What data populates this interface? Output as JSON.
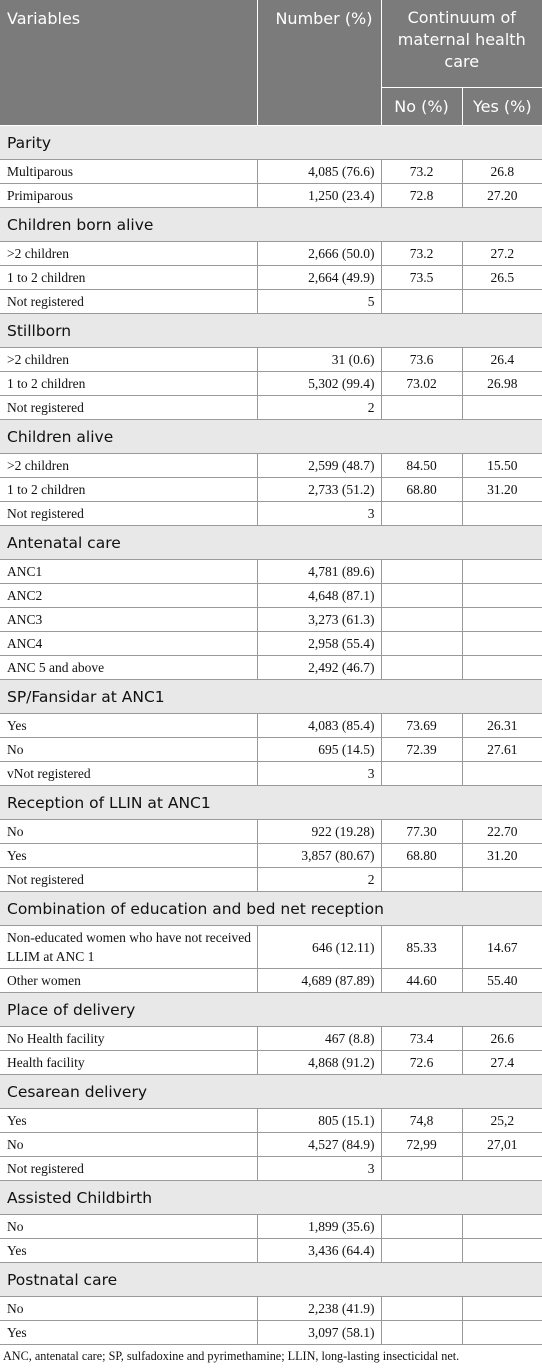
{
  "header": {
    "variables": "Variables",
    "number": "Number (%)",
    "continuum": "Continuum of maternal health care",
    "no": "No (%)",
    "yes": "Yes (%)"
  },
  "sections": [
    {
      "title": "Parity",
      "rows": [
        {
          "label": "Multiparous",
          "number": "4,085 (76.6)",
          "no": "73.2",
          "yes": "26.8"
        },
        {
          "label": "Primiparous",
          "number": "1,250 (23.4)",
          "no": "72.8",
          "yes": "27.20"
        }
      ]
    },
    {
      "title": "Children born alive",
      "rows": [
        {
          "label": ">2 children",
          "number": "2,666 (50.0)",
          "no": "73.2",
          "yes": "27.2"
        },
        {
          "label": "1 to 2 children",
          "number": "2,664 (49.9)",
          "no": "73.5",
          "yes": "26.5"
        },
        {
          "label": "Not registered",
          "number": "5",
          "no": "",
          "yes": ""
        }
      ]
    },
    {
      "title": "Stillborn",
      "rows": [
        {
          "label": ">2 children",
          "number": "31 (0.6)",
          "no": "73.6",
          "yes": "26.4"
        },
        {
          "label": "1 to 2 children",
          "number": "5,302 (99.4)",
          "no": "73.02",
          "yes": "26.98"
        },
        {
          "label": "Not registered",
          "number": "2",
          "no": "",
          "yes": ""
        }
      ]
    },
    {
      "title": "Children alive",
      "rows": [
        {
          "label": ">2 children",
          "number": "2,599 (48.7)",
          "no": "84.50",
          "yes": "15.50"
        },
        {
          "label": "1 to 2 children",
          "number": "2,733 (51.2)",
          "no": "68.80",
          "yes": "31.20"
        },
        {
          "label": "Not registered",
          "number": "3",
          "no": "",
          "yes": ""
        }
      ]
    },
    {
      "title": "Antenatal care",
      "rows": [
        {
          "label": "ANC1",
          "number": "4,781 (89.6)",
          "no": "",
          "yes": ""
        },
        {
          "label": "ANC2",
          "number": "4,648 (87.1)",
          "no": "",
          "yes": ""
        },
        {
          "label": "ANC3",
          "number": "3,273 (61.3)",
          "no": "",
          "yes": ""
        },
        {
          "label": "ANC4",
          "number": "2,958 (55.4)",
          "no": "",
          "yes": ""
        },
        {
          "label": "ANC 5 and above",
          "number": "2,492 (46.7)",
          "no": "",
          "yes": ""
        }
      ]
    },
    {
      "title": "SP/Fansidar at ANC1",
      "rows": [
        {
          "label": "Yes",
          "number": "4,083 (85.4)",
          "no": "73.69",
          "yes": "26.31"
        },
        {
          "label": "No",
          "number": "695 (14.5)",
          "no": "72.39",
          "yes": "27.61"
        },
        {
          "label": "vNot registered",
          "number": "3",
          "no": "",
          "yes": ""
        }
      ]
    },
    {
      "title": "Reception of LLIN at ANC1",
      "rows": [
        {
          "label": "No",
          "number": "922 (19.28)",
          "no": "77.30",
          "yes": "22.70"
        },
        {
          "label": "Yes",
          "number": "3,857 (80.67)",
          "no": "68.80",
          "yes": "31.20"
        },
        {
          "label": "Not registered",
          "number": "2",
          "no": "",
          "yes": ""
        }
      ]
    },
    {
      "title": "Combination of education and bed net reception",
      "rows": [
        {
          "label": "Non-educated women who have not received LLIM at ANC 1",
          "number": "646 (12.11)",
          "no": "85.33",
          "yes": "14.67",
          "tall": true
        },
        {
          "label": "Other women",
          "number": "4,689 (87.89)",
          "no": "44.60",
          "yes": "55.40"
        }
      ]
    },
    {
      "title": "Place of delivery",
      "rows": [
        {
          "label": "No Health facility",
          "number": "467 (8.8)",
          "no": "73.4",
          "yes": "26.6"
        },
        {
          "label": "Health facility",
          "number": "4,868 (91.2)",
          "no": "72.6",
          "yes": "27.4"
        }
      ]
    },
    {
      "title": "Cesarean delivery",
      "rows": [
        {
          "label": "Yes",
          "number": "805 (15.1)",
          "no": "74,8",
          "yes": "25,2"
        },
        {
          "label": "No",
          "number": "4,527 (84.9)",
          "no": "72,99",
          "yes": "27,01"
        },
        {
          "label": "Not registered",
          "number": "3",
          "no": "",
          "yes": ""
        }
      ]
    },
    {
      "title": "Assisted Childbirth",
      "rows": [
        {
          "label": "No",
          "number": "1,899 (35.6)",
          "no": "",
          "yes": ""
        },
        {
          "label": "Yes",
          "number": "3,436 (64.4)",
          "no": "",
          "yes": ""
        }
      ]
    },
    {
      "title": "Postnatal care",
      "rows": [
        {
          "label": "No",
          "number": "2,238 (41.9)",
          "no": "",
          "yes": ""
        },
        {
          "label": "Yes",
          "number": "3,097 (58.1)",
          "no": "",
          "yes": ""
        }
      ]
    }
  ],
  "footnote": "ANC, antenatal care; SP, sulfadoxine and pyrimethamine; LLIN, long-lasting insecticidal net."
}
